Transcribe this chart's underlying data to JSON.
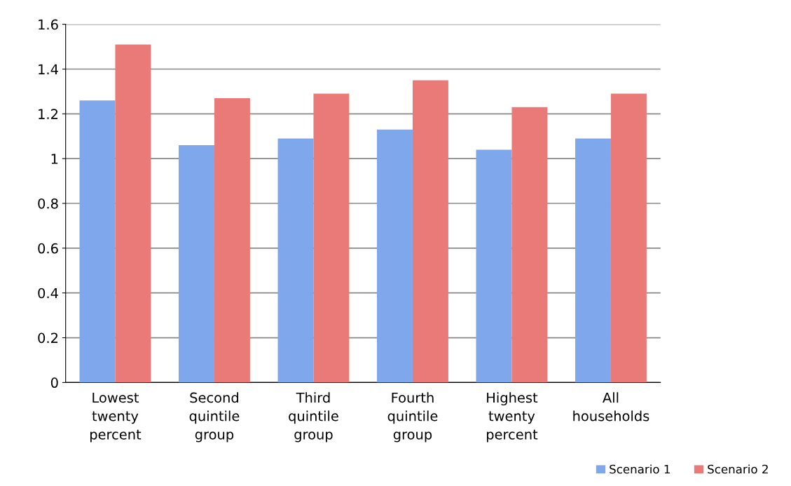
{
  "chart_data": {
    "type": "bar",
    "categories": [
      "Lowest\ntwenty\npercent",
      "Second\nquintile\ngroup",
      "Third\nquintile\ngroup",
      "Fourth\nquintile\ngroup",
      "Highest\ntwenty\npercent",
      "All\nhouseholds"
    ],
    "series": [
      {
        "name": "Scenario 1",
        "color": "#7fa7ec",
        "values": [
          1.26,
          1.06,
          1.09,
          1.13,
          1.04,
          1.09
        ]
      },
      {
        "name": "Scenario 2",
        "color": "#e97a78",
        "values": [
          1.51,
          1.27,
          1.29,
          1.35,
          1.23,
          1.29
        ]
      }
    ],
    "ylim": [
      0,
      1.6
    ],
    "yticks": [
      0,
      0.2,
      0.4,
      0.6,
      0.8,
      1,
      1.2,
      1.4,
      1.6
    ],
    "grid": "y",
    "legend": "bottom right"
  }
}
